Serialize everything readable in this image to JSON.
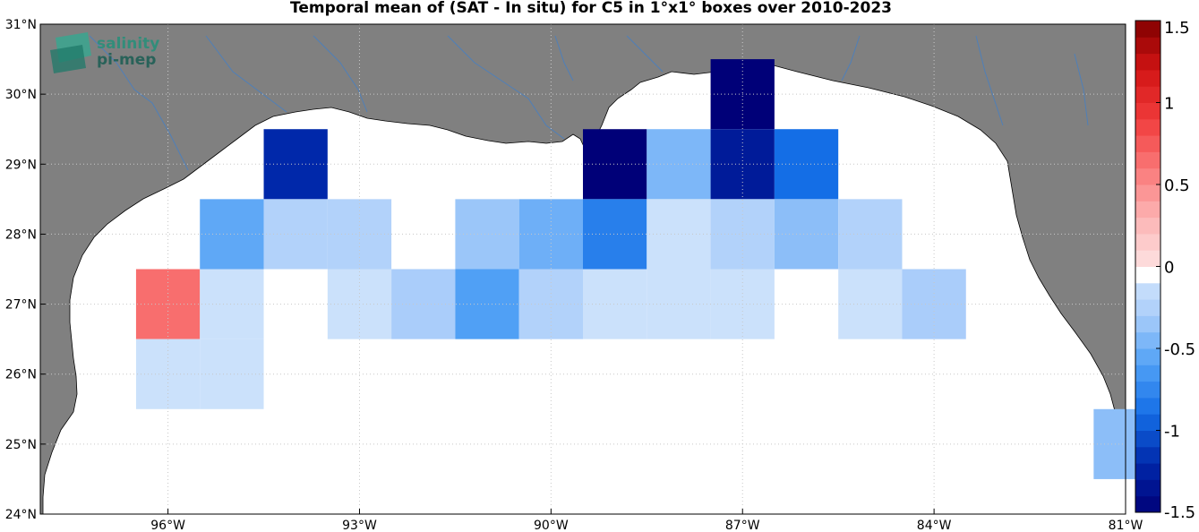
{
  "title": "Temporal mean of (SAT - In situ) for C5 in 1°x1° boxes over 2010-2023",
  "logo": {
    "line1": "salinity",
    "line2": "pi-mep",
    "color": "#1f7a6a"
  },
  "colors": {
    "land": "#808080",
    "water": "#ffffff",
    "river": "#4f7fb8",
    "grid": "#c8c8c8"
  },
  "chart_data": {
    "type": "heatmap",
    "xlabel": "",
    "ylabel": "",
    "xlim": [
      -98,
      -81
    ],
    "ylim": [
      24,
      31
    ],
    "x_ticks": [
      {
        "value": -96,
        "label": "96°W"
      },
      {
        "value": -93,
        "label": "93°W"
      },
      {
        "value": -90,
        "label": "90°W"
      },
      {
        "value": -87,
        "label": "87°W"
      },
      {
        "value": -84,
        "label": "84°W"
      },
      {
        "value": -81,
        "label": "81°W"
      }
    ],
    "y_ticks": [
      {
        "value": 24,
        "label": "24°N"
      },
      {
        "value": 25,
        "label": "25°N"
      },
      {
        "value": 26,
        "label": "26°N"
      },
      {
        "value": 27,
        "label": "27°N"
      },
      {
        "value": 28,
        "label": "28°N"
      },
      {
        "value": 29,
        "label": "29°N"
      },
      {
        "value": 30,
        "label": "30°N"
      },
      {
        "value": 31,
        "label": "31°N"
      }
    ],
    "colorbar": {
      "min": -1.5,
      "max": 1.5,
      "ticks": [
        {
          "value": 1.5,
          "label": "1.5"
        },
        {
          "value": 1,
          "label": "1"
        },
        {
          "value": 0.5,
          "label": "0.5"
        },
        {
          "value": 0,
          "label": "0"
        },
        {
          "value": -0.5,
          "label": "-0.5"
        },
        {
          "value": -1,
          "label": "-1"
        },
        {
          "value": -1.5,
          "label": "-1.5"
        }
      ]
    },
    "cells": [
      {
        "lon": -96,
        "lat": 27,
        "value": 0.65
      },
      {
        "lon": -96,
        "lat": 26,
        "value": -0.1
      },
      {
        "lon": -95,
        "lat": 28,
        "value": -0.55
      },
      {
        "lon": -95,
        "lat": 27,
        "value": -0.1
      },
      {
        "lon": -95,
        "lat": 26,
        "value": -0.1
      },
      {
        "lon": -94,
        "lat": 29,
        "value": -1.2
      },
      {
        "lon": -94,
        "lat": 28,
        "value": -0.25
      },
      {
        "lon": -93,
        "lat": 28,
        "value": -0.25
      },
      {
        "lon": -93,
        "lat": 27,
        "value": -0.1
      },
      {
        "lon": -92,
        "lat": 27,
        "value": -0.3
      },
      {
        "lon": -91,
        "lat": 28,
        "value": -0.35
      },
      {
        "lon": -91,
        "lat": 27,
        "value": -0.6
      },
      {
        "lon": -90,
        "lat": 28,
        "value": -0.5
      },
      {
        "lon": -90,
        "lat": 27,
        "value": -0.25
      },
      {
        "lon": -89,
        "lat": 29,
        "value": -1.5
      },
      {
        "lon": -89,
        "lat": 28,
        "value": -0.8
      },
      {
        "lon": -89,
        "lat": 27,
        "value": -0.1
      },
      {
        "lon": -88,
        "lat": 29,
        "value": -0.45
      },
      {
        "lon": -88,
        "lat": 28,
        "value": -0.1
      },
      {
        "lon": -88,
        "lat": 27,
        "value": -0.1
      },
      {
        "lon": -87,
        "lat": 30,
        "value": -1.5
      },
      {
        "lon": -87,
        "lat": 29,
        "value": -1.3
      },
      {
        "lon": -87,
        "lat": 28,
        "value": -0.25
      },
      {
        "lon": -87,
        "lat": 27,
        "value": -0.1
      },
      {
        "lon": -86,
        "lat": 29,
        "value": -0.9
      },
      {
        "lon": -86,
        "lat": 28,
        "value": -0.4
      },
      {
        "lon": -85,
        "lat": 28,
        "value": -0.25
      },
      {
        "lon": -85,
        "lat": 27,
        "value": -0.1
      },
      {
        "lon": -84,
        "lat": 27,
        "value": -0.3
      },
      {
        "lon": -81,
        "lat": 25,
        "value": -0.4
      }
    ]
  }
}
